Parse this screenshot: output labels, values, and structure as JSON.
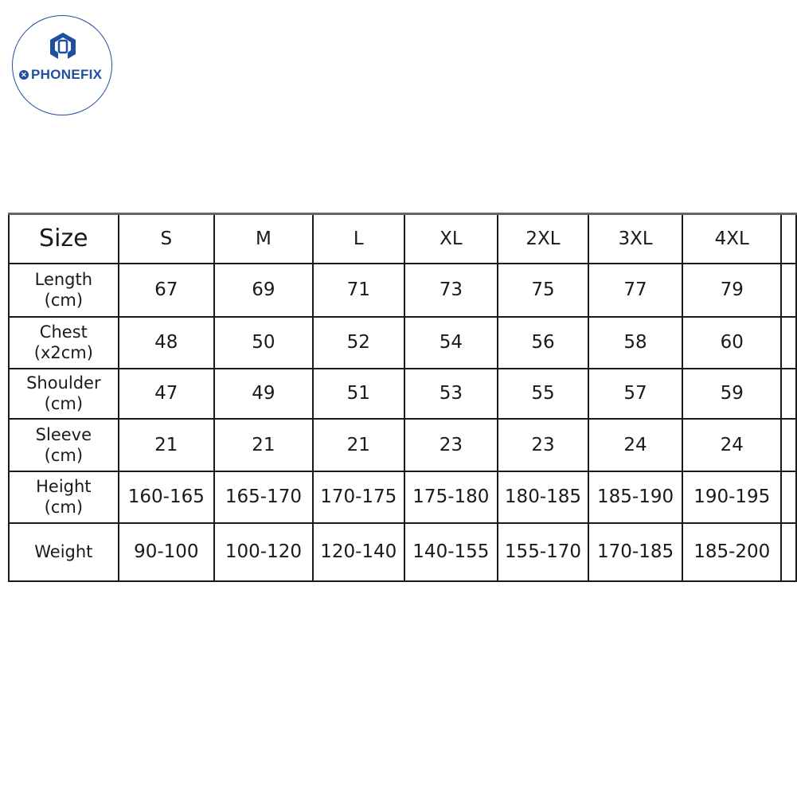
{
  "logo": {
    "brand": "PHONEFIX",
    "color": "#1f4fa0"
  },
  "table": {
    "header": {
      "label": "Size",
      "sizes": [
        "S",
        "M",
        "L",
        "XL",
        "2XL",
        "3XL",
        "4XL"
      ]
    },
    "rows": [
      {
        "label": "Length",
        "unit": "(cm)",
        "values": [
          "67",
          "69",
          "71",
          "73",
          "75",
          "77",
          "79"
        ]
      },
      {
        "label": "Chest",
        "unit": "(x2cm)",
        "values": [
          "48",
          "50",
          "52",
          "54",
          "56",
          "58",
          "60"
        ]
      },
      {
        "label": "Shoulder",
        "unit": "(cm)",
        "values": [
          "47",
          "49",
          "51",
          "53",
          "55",
          "57",
          "59"
        ]
      },
      {
        "label": "Sleeve",
        "unit": "(cm)",
        "values": [
          "21",
          "21",
          "21",
          "23",
          "23",
          "24",
          "24"
        ]
      },
      {
        "label": "Height",
        "unit": "(cm)",
        "values": [
          "160-165",
          "165-170",
          "170-175",
          "175-180",
          "180-185",
          "185-190",
          "190-195"
        ]
      },
      {
        "label": "Weight",
        "unit": "",
        "values": [
          "90-100",
          "100-120",
          "120-140",
          "140-155",
          "155-170",
          "170-185",
          "185-200"
        ]
      }
    ]
  }
}
